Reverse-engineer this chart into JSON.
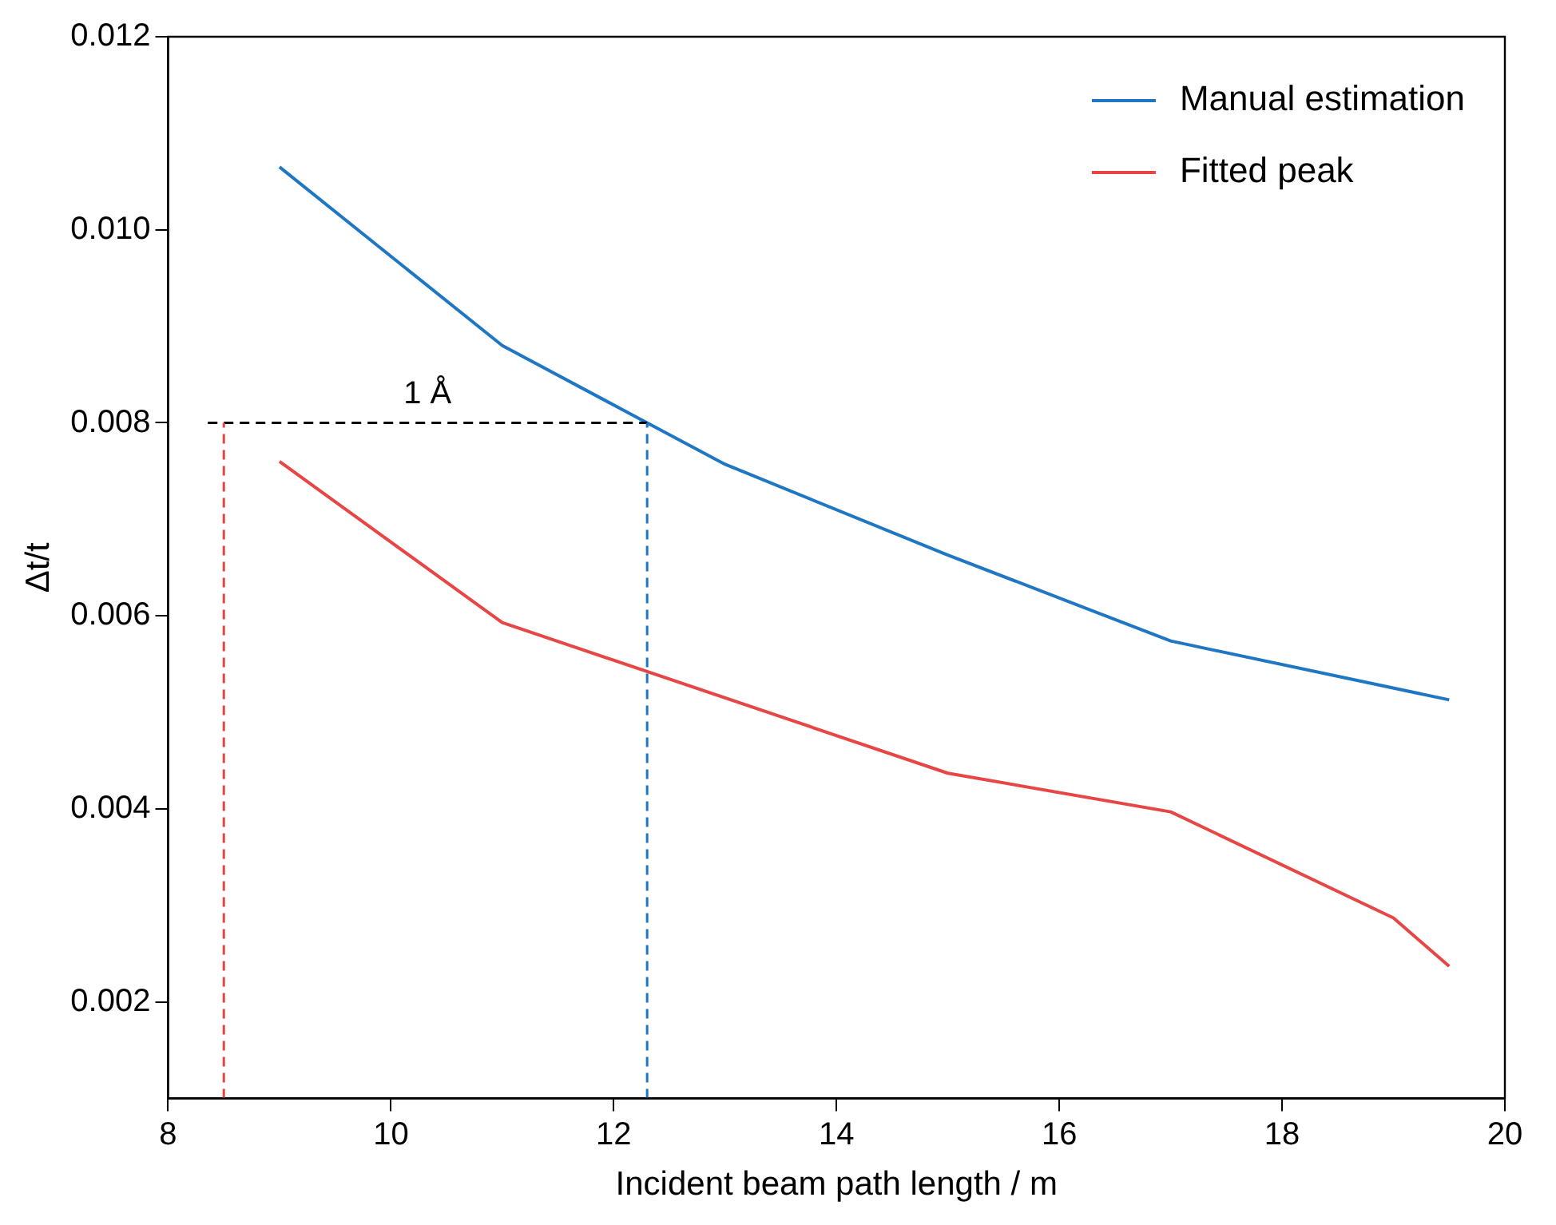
{
  "chart_data": {
    "type": "line",
    "xlabel": "Incident beam path length / m",
    "ylabel": "Δt/t",
    "xlim": [
      8,
      20
    ],
    "xticks": [
      8,
      10,
      12,
      14,
      16,
      18,
      20
    ],
    "ylim": [
      0.001,
      0.012
    ],
    "yticks": [
      0.002,
      0.004,
      0.006,
      0.008,
      {
        "value": 0.01,
        "label": "0.010"
      },
      0.012
    ],
    "grid": false,
    "legend": "top right",
    "marker": "none",
    "line_style": "solid",
    "series": [
      {
        "name": "Manual estimation",
        "color": "#1f77c4",
        "x": [
          9,
          11,
          12.3,
          13,
          15,
          17,
          19.5
        ],
        "values": [
          0.01065,
          0.0088,
          0.008,
          0.00757,
          0.00663,
          0.00574,
          0.00513
        ]
      },
      {
        "name": "Fitted peak",
        "color": "#e84545",
        "x": [
          9,
          11,
          15,
          17,
          19,
          19.5
        ],
        "values": [
          0.0076,
          0.00593,
          0.00437,
          0.00397,
          0.00287,
          0.00237
        ]
      }
    ],
    "ref_lines": [
      {
        "axis": "y",
        "value": 0.008,
        "label": "1 Å",
        "color": "#000000",
        "line_style": "dashed"
      },
      {
        "axis": "x",
        "value": 8.5,
        "color": "#e84545",
        "line_style": "dashed"
      },
      {
        "axis": "x",
        "value": 12.3,
        "color": "#1f77c4",
        "line_style": "dashed"
      }
    ]
  }
}
